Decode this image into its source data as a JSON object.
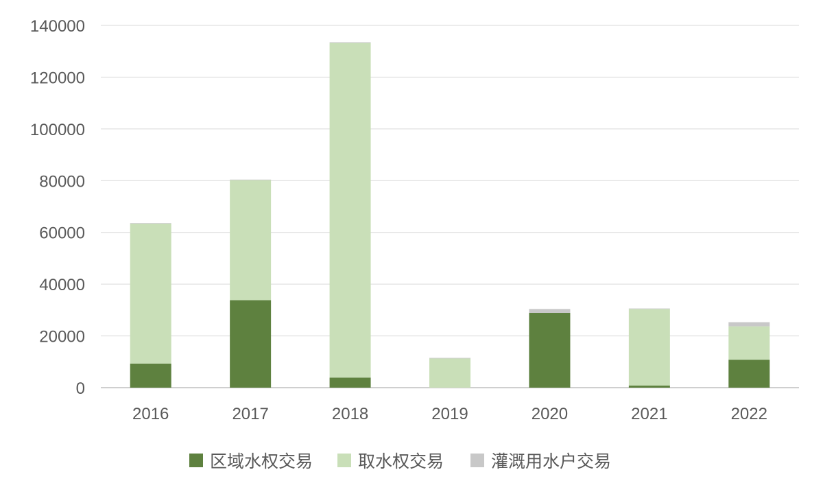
{
  "chart_data": {
    "type": "bar",
    "stacked": true,
    "categories": [
      "2016",
      "2017",
      "2018",
      "2019",
      "2020",
      "2021",
      "2022"
    ],
    "series": [
      {
        "name": "区域水权交易",
        "color": "#5E813F",
        "values": [
          9300,
          33800,
          3900,
          0,
          28900,
          800,
          10800
        ]
      },
      {
        "name": "取水权交易",
        "color": "#C9DFB8",
        "values": [
          54100,
          46400,
          129300,
          11300,
          0,
          29600,
          12900
        ]
      },
      {
        "name": "灌溉用水户交易",
        "color": "#C8C8C8",
        "values": [
          200,
          200,
          300,
          200,
          1500,
          200,
          1600
        ]
      }
    ],
    "ylim": [
      0,
      140000
    ],
    "yticks": [
      "0",
      "20000",
      "40000",
      "60000",
      "80000",
      "100000",
      "120000",
      "140000"
    ],
    "grid": true,
    "legend_position": "bottom"
  }
}
